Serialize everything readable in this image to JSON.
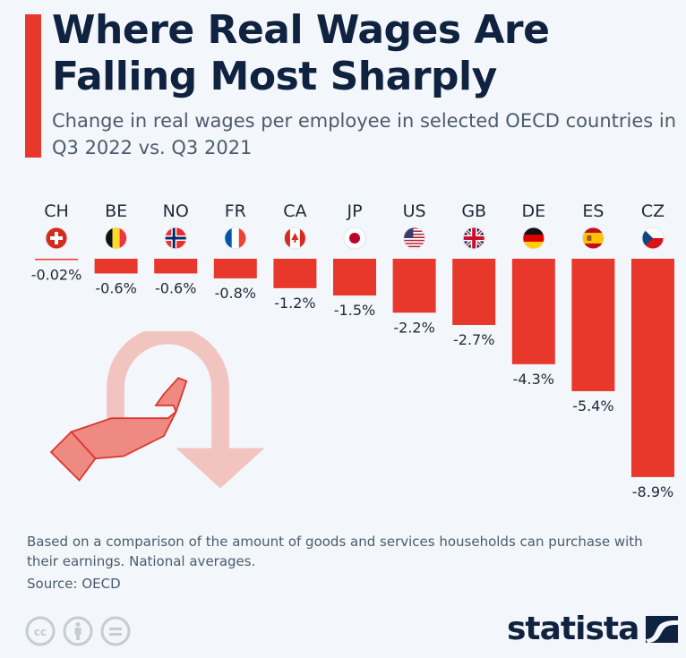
{
  "header": {
    "title": "Where Real Wages Are Falling Most Sharply",
    "subtitle": "Change in real wages per employee in selected OECD countries in Q3 2022 vs. Q3 2021"
  },
  "footer": {
    "note": "Based on a comparison of the amount of goods and services households can purchase with their earnings. National averages.",
    "source": "Source: OECD",
    "brand": "statista"
  },
  "colors": {
    "bar": "#e8382b",
    "title": "#0f2240",
    "text": "#4b5b6e",
    "background": "#f3f6fa"
  },
  "chart_data": {
    "type": "bar",
    "title": "Where Real Wages Are Falling Most Sharply",
    "subtitle": "Change in real wages per employee in selected OECD countries in Q3 2022 vs. Q3 2021",
    "xlabel": "",
    "ylabel": "Change in real wages (%)",
    "categories": [
      "CH",
      "BE",
      "NO",
      "FR",
      "CA",
      "JP",
      "US",
      "GB",
      "DE",
      "ES",
      "CZ"
    ],
    "flags": [
      "switzerland-flag",
      "belgium-flag",
      "norway-flag",
      "france-flag",
      "canada-flag",
      "japan-flag",
      "usa-flag",
      "uk-flag",
      "germany-flag",
      "spain-flag",
      "czechia-flag"
    ],
    "values": [
      -0.02,
      -0.6,
      -0.6,
      -0.8,
      -1.2,
      -1.5,
      -2.2,
      -2.7,
      -4.3,
      -5.4,
      -8.9
    ],
    "labels": [
      "-0.02%",
      "-0.6%",
      "-0.6%",
      "-0.8%",
      "-1.2%",
      "-1.5%",
      "-2.2%",
      "-2.7%",
      "-4.3%",
      "-5.4%",
      "-8.9%"
    ],
    "ylim": [
      -8.9,
      0
    ],
    "grid": false,
    "legend": "none"
  }
}
